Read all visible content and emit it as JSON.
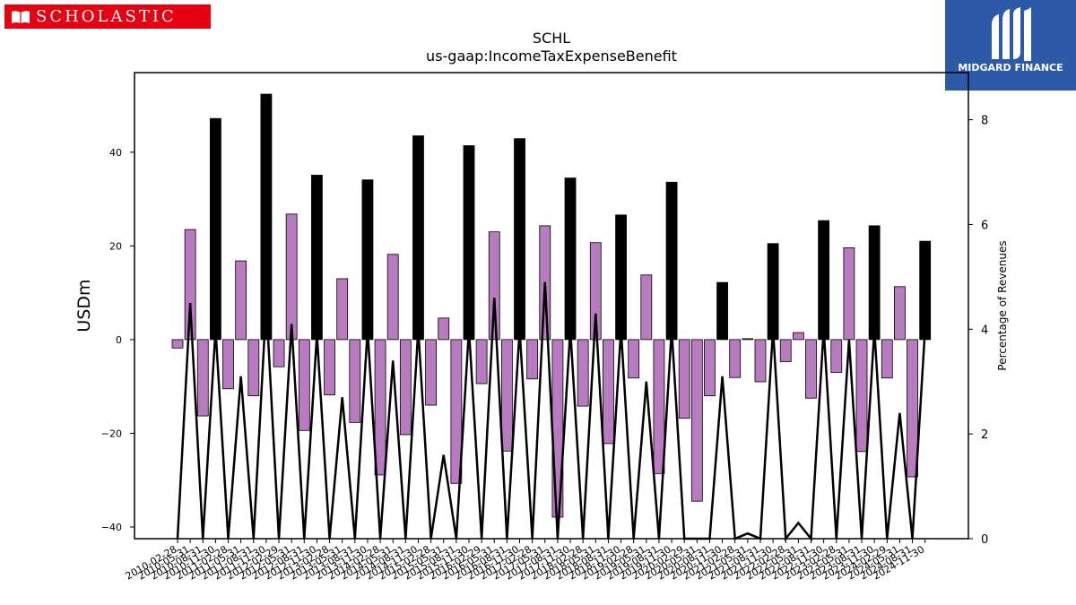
{
  "logos": {
    "left": {
      "text": "SCHOLASTIC",
      "color": "#e60012"
    },
    "right": {
      "text": "MIDGARD FINANCE",
      "color": "#2c5aa8"
    }
  },
  "chart_data": {
    "type": "bar",
    "title": "SCHL",
    "subtitle": "us-gaap:IncomeTaxExpenseBenefit",
    "ylabel": "USDm",
    "ylabel_right": "Percentage of Revenues",
    "ylim": [
      -42.5,
      57.0
    ],
    "ylim_right": [
      0,
      8.9
    ],
    "yticks": [
      -40,
      -20,
      0,
      20,
      40
    ],
    "yticks_right": [
      0,
      2,
      4,
      6,
      8
    ],
    "grid": false,
    "colors": {
      "quarter": "#b87bbf",
      "annual": "#000000",
      "line": "#000000"
    },
    "x": [
      "2010-02-28",
      "2010-05-31",
      "2010-08-31",
      "2010-11-30",
      "2011-02-28",
      "2011-05-31",
      "2011-08-31",
      "2011-11-30",
      "2012-02-29",
      "2012-05-31",
      "2012-08-31",
      "2012-11-30",
      "2013-02-28",
      "2013-05-31",
      "2013-08-31",
      "2013-11-30",
      "2014-02-28",
      "2014-05-31",
      "2014-08-31",
      "2014-11-30",
      "2015-02-28",
      "2015-05-31",
      "2015-08-31",
      "2015-11-30",
      "2016-02-29",
      "2016-05-31",
      "2016-08-31",
      "2016-11-30",
      "2017-02-28",
      "2017-05-31",
      "2017-08-31",
      "2017-11-30",
      "2018-02-28",
      "2018-05-31",
      "2018-08-31",
      "2018-11-30",
      "2019-02-28",
      "2019-05-31",
      "2019-08-31",
      "2019-11-30",
      "2020-02-29",
      "2020-05-31",
      "2020-08-31",
      "2020-11-30",
      "2021-02-28",
      "2021-05-31",
      "2021-08-31",
      "2021-11-30",
      "2022-02-28",
      "2022-05-31",
      "2022-08-31",
      "2022-11-30",
      "2023-02-28",
      "2023-05-31",
      "2023-08-31",
      "2023-11-30",
      "2024-02-29",
      "2024-05-31",
      "2024-08-31",
      "2024-11-30"
    ],
    "series": [
      {
        "values": [
          -1.8,
          23.5,
          -16.3,
          47.2,
          -10.5,
          16.8,
          -12.0,
          52.4,
          -5.8,
          26.8,
          -19.4,
          35.1,
          -11.8,
          13.0,
          -17.7,
          34.1,
          -28.9,
          18.2,
          -20.3,
          43.5,
          -14.0,
          4.6,
          -30.7,
          41.4,
          -9.4,
          23.0,
          -23.8,
          42.9,
          -8.4,
          24.3,
          -37.9,
          34.5,
          -14.2,
          20.7,
          -22.2,
          26.6,
          -8.2,
          13.8,
          -28.6,
          33.6,
          -16.8,
          -34.5,
          -12.0,
          12.2,
          -8.1,
          0.2,
          -9.0,
          20.5,
          -4.7,
          1.5,
          -12.5,
          25.4,
          -7.0,
          19.6,
          -23.9,
          24.3,
          -8.2,
          11.3,
          -29.3,
          21.0
        ]
      },
      {
        "values": [
          0,
          4.5,
          0,
          4.0,
          0,
          3.1,
          0,
          4.5,
          0,
          4.1,
          0,
          3.9,
          0,
          2.7,
          0,
          4.0,
          0,
          3.4,
          0,
          4.0,
          0,
          1.6,
          0,
          4.0,
          0,
          4.6,
          0,
          4.0,
          0,
          4.9,
          0,
          4.0,
          0,
          4.3,
          0,
          4.0,
          0,
          3.0,
          0,
          4.0,
          0,
          0,
          0,
          3.1,
          0,
          0.1,
          0,
          4.0,
          0,
          0.3,
          0,
          4.0,
          0,
          3.8,
          0,
          4.0,
          0,
          2.4,
          0,
          4.0
        ]
      }
    ]
  }
}
